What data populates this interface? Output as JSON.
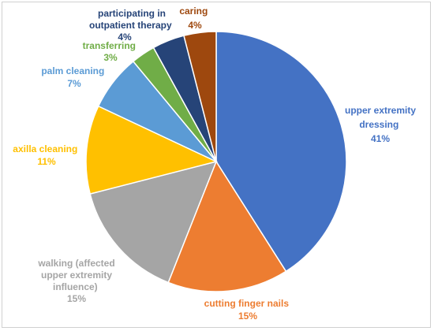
{
  "chart_data": {
    "type": "pie",
    "title": "",
    "slices": [
      {
        "label": "upper extremity dressing",
        "value": 41,
        "value_label": "41%",
        "color": "#4472C4"
      },
      {
        "label": "cutting finger nails",
        "value": 15,
        "value_label": "15%",
        "color": "#ED7D31"
      },
      {
        "label": "walking (affected upper extremity influence)",
        "value": 15,
        "value_label": "15%",
        "color": "#A5A5A5"
      },
      {
        "label": "axilla cleaning",
        "value": 11,
        "value_label": "11%",
        "color": "#FFC000"
      },
      {
        "label": "palm cleaning",
        "value": 7,
        "value_label": "7%",
        "color": "#5B9BD5"
      },
      {
        "label": "transferring",
        "value": 3,
        "value_label": "3%",
        "color": "#70AD47"
      },
      {
        "label": "participating in outpatient therapy",
        "value": 4,
        "value_label": "4%",
        "color": "#264478"
      },
      {
        "label": "caring",
        "value": 4,
        "value_label": "4%",
        "color": "#9E480E"
      }
    ]
  }
}
